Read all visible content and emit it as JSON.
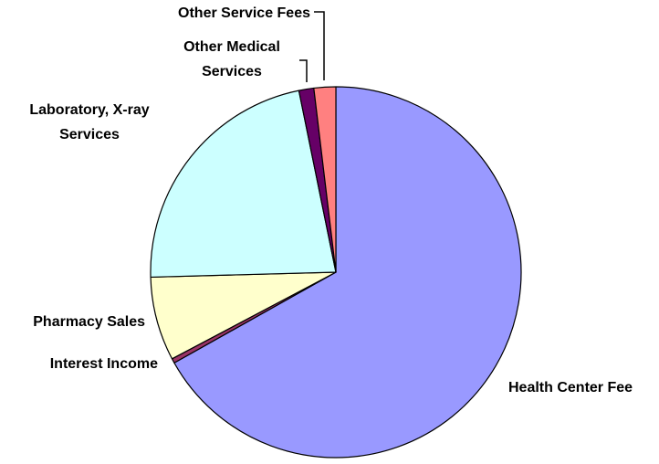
{
  "chart_data": {
    "type": "pie",
    "title": "",
    "slices": [
      {
        "label": "Health Center Fee",
        "value": 66.8,
        "color": "#9999FF"
      },
      {
        "label": "Interest Income",
        "value": 0.4,
        "color": "#993366"
      },
      {
        "label": "Pharmacy Sales",
        "value": 7.3,
        "color": "#FFFFCC"
      },
      {
        "label": "Laboratory, X-ray Services",
        "value": 22.2,
        "color": "#CCFFFF"
      },
      {
        "label": "Other Medical Services",
        "value": 1.3,
        "color": "#660066"
      },
      {
        "label": "Other Service Fees",
        "value": 1.9,
        "color": "#FF8080"
      }
    ],
    "labels": {
      "health_center_fee": "Health Center Fee",
      "interest_income": "Interest Income",
      "pharmacy_sales": "Pharmacy Sales",
      "laboratory_line1": "Laboratory, X-ray",
      "laboratory_line2": "Services",
      "other_medical_line1": "Other Medical",
      "other_medical_line2": "Services",
      "other_service_fees": "Other Service Fees"
    }
  }
}
